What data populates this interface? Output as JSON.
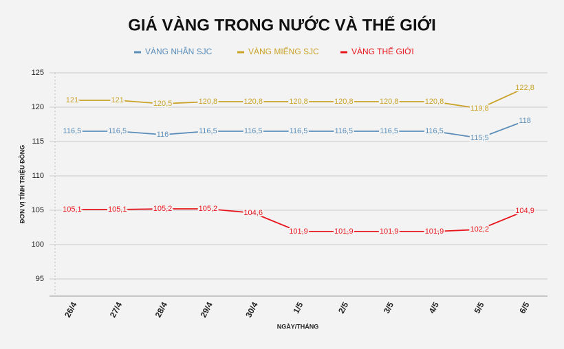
{
  "chart_data": {
    "type": "line",
    "title": "GIÁ VÀNG TRONG NƯỚC VÀ THẾ GIỚI",
    "x_label": "NGÀY/THÁNG",
    "y_label": "ĐƠN VỊ TÍNH TRIỆU ĐỒNG",
    "categories": [
      "26/4",
      "27/4",
      "28/4",
      "29/4",
      "30/4",
      "1/5",
      "2/5",
      "3/5",
      "4/5",
      "5/5",
      "6/5"
    ],
    "series": [
      {
        "name": "VÀNG NHẪN SJC",
        "color": "#5b8db8",
        "values": [
          116.5,
          116.5,
          116,
          116.5,
          116.5,
          116.5,
          116.5,
          116.5,
          116.5,
          115.5,
          118
        ],
        "value_labels": [
          "116,5",
          "116,5",
          "116",
          "116,5",
          "116,5",
          "116,5",
          "116,5",
          "116,5",
          "116,5",
          "115,5",
          "118"
        ]
      },
      {
        "name": "VÀNG MIẾNG SJC",
        "color": "#c9a227",
        "values": [
          121,
          121,
          120.5,
          120.8,
          120.8,
          120.8,
          120.8,
          120.8,
          120.8,
          119.8,
          122.8
        ],
        "value_labels": [
          "121",
          "121",
          "120,5",
          "120,8",
          "120,8",
          "120,8",
          "120,8",
          "120,8",
          "120,8",
          "119,8",
          "122,8"
        ]
      },
      {
        "name": "VÀNG THẾ GIỚI",
        "color": "#e8141c",
        "values": [
          105.1,
          105.1,
          105.2,
          105.2,
          104.6,
          101.9,
          101.9,
          101.9,
          101.9,
          102.2,
          104.9
        ],
        "value_labels": [
          "105,1",
          "105,1",
          "105,2",
          "105,2",
          "104,6",
          "101,9",
          "101,9",
          "101,9",
          "101,9",
          "102,2",
          "104,9"
        ]
      }
    ],
    "ylim": [
      92.5,
      125
    ],
    "yticks": [
      95,
      100,
      105,
      110,
      115,
      120,
      125
    ],
    "grid": true
  }
}
